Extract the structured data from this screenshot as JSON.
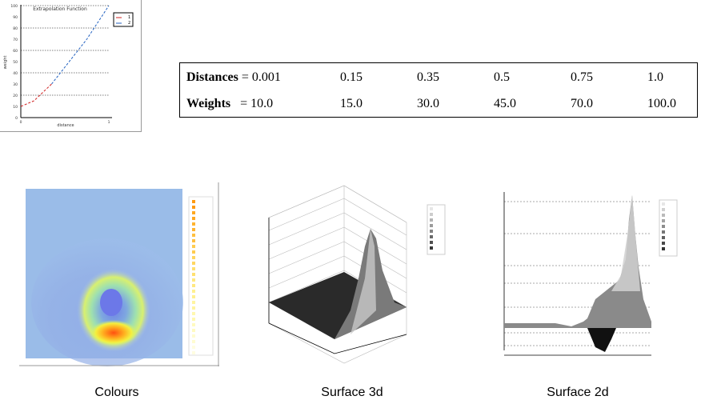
{
  "mini_chart": {
    "title": "Extrapolation Function",
    "xlabel": "distance",
    "ylabel": "weight",
    "legend": [
      "1",
      "2"
    ],
    "y_ticks": [
      "100",
      "90",
      "80",
      "70",
      "60",
      "50",
      "40",
      "30",
      "20",
      "10",
      "0"
    ],
    "x_ticks": [
      "0",
      "1"
    ],
    "colors": {
      "series1": "#d02020",
      "series2": "#2060c0"
    }
  },
  "table": {
    "distances_label": "Distances",
    "weights_label": "Weights",
    "eq": "=",
    "distances": [
      "0.001",
      "0.15",
      "0.35",
      "0.5",
      "0.75",
      "1.0"
    ],
    "weights": [
      "10.0",
      "15.0",
      "30.0",
      "45.0",
      "70.0",
      "100.0"
    ]
  },
  "panels": {
    "colours_caption": "Colours",
    "surface3d_caption": "Surface 3d",
    "surface2d_caption": "Surface 2d"
  },
  "chart_data": {
    "type": "line",
    "title": "Extrapolation Function",
    "xlabel": "distance",
    "ylabel": "weight",
    "ylim": [
      0,
      100
    ],
    "xlim": [
      0,
      1
    ],
    "series": [
      {
        "name": "1",
        "x": [
          0.001,
          0.15,
          0.35
        ],
        "values": [
          10.0,
          15.0,
          30.0
        ]
      },
      {
        "name": "2",
        "x": [
          0.35,
          0.5,
          0.75,
          1.0
        ],
        "values": [
          30.0,
          45.0,
          70.0,
          100.0
        ]
      }
    ]
  }
}
